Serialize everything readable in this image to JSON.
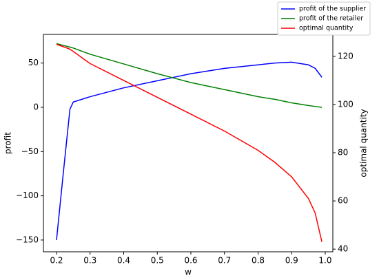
{
  "chart_data": {
    "type": "line",
    "xlabel": "w",
    "ylabel": "profit",
    "y2label": "optimal quantity",
    "x": [
      0.2,
      0.22,
      0.24,
      0.25,
      0.3,
      0.4,
      0.5,
      0.6,
      0.7,
      0.8,
      0.85,
      0.9,
      0.95,
      0.97,
      0.99
    ],
    "series": [
      {
        "name": "profit of the supplier",
        "color": "#0000ff",
        "values": [
          -150,
          -75,
          -2,
          6,
          12,
          22,
          30,
          38,
          44,
          48,
          50,
          51,
          48,
          44,
          34
        ]
      },
      {
        "name": "profit of the retailer",
        "color": "#008000",
        "values": [
          72,
          70,
          68,
          67,
          60,
          49,
          38,
          28,
          20,
          12,
          9,
          5,
          2,
          1,
          0
        ]
      },
      {
        "name": "optimal quantity",
        "color": "#ff0000",
        "axis": "y2",
        "values": [
          125,
          124,
          123,
          122,
          117,
          110,
          103,
          96,
          89,
          81,
          76,
          70,
          61,
          55,
          43
        ]
      }
    ],
    "xlim": [
      0.161,
      1.0226
    ],
    "xticks": [
      0.2,
      0.3,
      0.4,
      0.5,
      0.6,
      0.7,
      0.8,
      0.9,
      {
        "value": 1,
        "label": "1.0"
      }
    ],
    "ylim": [
      -163.3,
      82.4
    ],
    "yticks": [
      {
        "value": -150,
        "label": "−150"
      },
      {
        "value": -100,
        "label": "−100"
      },
      {
        "value": -50,
        "label": "−50"
      },
      0,
      50
    ],
    "y2lim": [
      38.9,
      129.1
    ],
    "y2ticks": [
      40,
      60,
      80,
      100,
      120
    ],
    "legend": "upper right"
  }
}
